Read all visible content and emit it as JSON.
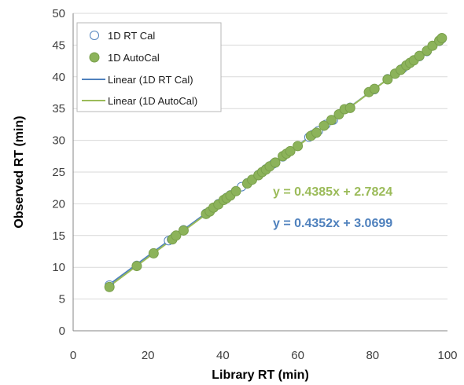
{
  "chart_data": {
    "type": "scatter",
    "xlabel": "Library RT (min)",
    "ylabel": "Observed RT (min)",
    "xlim": [
      0,
      100
    ],
    "ylim": [
      0,
      50
    ],
    "xticks": [
      0,
      20,
      40,
      60,
      80,
      100
    ],
    "yticks": [
      0,
      5,
      10,
      15,
      20,
      25,
      30,
      35,
      40,
      45,
      50
    ],
    "grid": "horizontal",
    "legend_position": "top-left",
    "series": [
      {
        "name": "1D RT Cal",
        "marker": "open-circle",
        "color": "#4f81bd",
        "points": [
          [
            9.7,
            7.2
          ],
          [
            17,
            10.3
          ],
          [
            21.5,
            12.2
          ],
          [
            25.5,
            14.2
          ],
          [
            26.3,
            14.4
          ],
          [
            27.2,
            14.9
          ],
          [
            29.5,
            15.9
          ],
          [
            35.5,
            18.5
          ],
          [
            36.5,
            18.8
          ],
          [
            37.5,
            19.4
          ],
          [
            38.8,
            20.0
          ],
          [
            40.2,
            20.6
          ],
          [
            41,
            21.0
          ],
          [
            42,
            21.4
          ],
          [
            43.5,
            22.0
          ],
          [
            45,
            22.7
          ],
          [
            46.5,
            23.3
          ],
          [
            47.8,
            23.8
          ],
          [
            49.5,
            24.6
          ],
          [
            50.5,
            25.0
          ],
          [
            51.5,
            25.5
          ],
          [
            52.5,
            25.9
          ],
          [
            53.5,
            26.3
          ],
          [
            56,
            27.4
          ],
          [
            57,
            27.9
          ],
          [
            58,
            28.3
          ],
          [
            60,
            29.1
          ],
          [
            63,
            30.5
          ],
          [
            64,
            30.9
          ],
          [
            65.5,
            31.5
          ],
          [
            67.5,
            32.5
          ],
          [
            69.5,
            33.2
          ],
          [
            71,
            34.1
          ],
          [
            72.5,
            34.9
          ],
          [
            74,
            35.2
          ],
          [
            79,
            37.6
          ],
          [
            80.5,
            38.0
          ],
          [
            84,
            39.7
          ],
          [
            86,
            40.5
          ],
          [
            88,
            41.3
          ],
          [
            89.5,
            42.0
          ],
          [
            91,
            42.6
          ],
          [
            92.5,
            43.2
          ],
          [
            94.5,
            44.0
          ],
          [
            96,
            44.9
          ],
          [
            97.8,
            45.6
          ],
          [
            98.5,
            46.0
          ]
        ]
      },
      {
        "name": "1D AutoCal",
        "marker": "filled-circle",
        "color": "#8cb35a",
        "points": [
          [
            9.7,
            6.9
          ],
          [
            17,
            10.2
          ],
          [
            21.5,
            12.2
          ],
          [
            26.5,
            14.4
          ],
          [
            27.5,
            15.0
          ],
          [
            29.5,
            15.8
          ],
          [
            35.5,
            18.4
          ],
          [
            36.5,
            18.8
          ],
          [
            37.5,
            19.4
          ],
          [
            38.8,
            19.9
          ],
          [
            40.2,
            20.6
          ],
          [
            41,
            20.9
          ],
          [
            42,
            21.3
          ],
          [
            43.5,
            22.0
          ],
          [
            46.5,
            23.2
          ],
          [
            47.8,
            23.8
          ],
          [
            49.5,
            24.5
          ],
          [
            50.5,
            25.0
          ],
          [
            51.5,
            25.4
          ],
          [
            52.5,
            25.9
          ],
          [
            54,
            26.5
          ],
          [
            56,
            27.5
          ],
          [
            57,
            27.9
          ],
          [
            58,
            28.3
          ],
          [
            60,
            29.1
          ],
          [
            63.5,
            30.7
          ],
          [
            65,
            31.2
          ],
          [
            67,
            32.3
          ],
          [
            69,
            33.2
          ],
          [
            71,
            34.1
          ],
          [
            72.5,
            34.9
          ],
          [
            74,
            35.1
          ],
          [
            79,
            37.6
          ],
          [
            80.5,
            38.1
          ],
          [
            84,
            39.6
          ],
          [
            86,
            40.5
          ],
          [
            87.5,
            41.1
          ],
          [
            89,
            41.8
          ],
          [
            90,
            42.2
          ],
          [
            91,
            42.6
          ],
          [
            92.5,
            43.3
          ],
          [
            94.5,
            44.1
          ],
          [
            96,
            44.9
          ],
          [
            97.8,
            45.7
          ],
          [
            98.5,
            46.1
          ]
        ]
      }
    ],
    "trendlines": [
      {
        "name": "Linear (1D RT Cal)",
        "color": "#4f81bd",
        "slope": 0.4352,
        "intercept": 3.0699,
        "x_range": [
          9.7,
          98.5
        ],
        "equation": "y = 0.4352x + 3.0699"
      },
      {
        "name": "Linear (1D AutoCal)",
        "color": "#9bbb59",
        "slope": 0.4385,
        "intercept": 2.7824,
        "x_range": [
          9.7,
          98.5
        ],
        "equation": "y = 0.4385x + 2.7824"
      }
    ],
    "legend": [
      "1D RT Cal",
      "1D AutoCal",
      "Linear (1D RT Cal)",
      "Linear (1D AutoCal)"
    ]
  }
}
